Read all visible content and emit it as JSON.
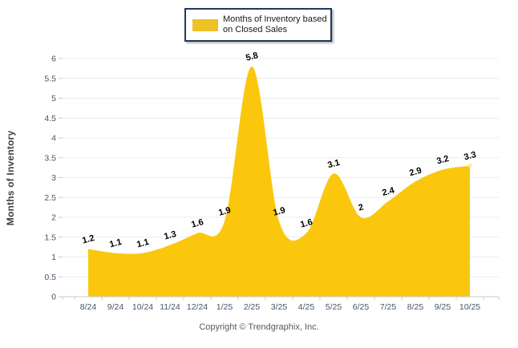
{
  "legend": {
    "lines": [
      "Months of Inventory based",
      "on Closed Sales"
    ],
    "swatch_color": "#EDC227",
    "border_color": "#1E3A5F"
  },
  "footer": {
    "text": "Copyright © Trendgraphix, Inc."
  },
  "chart_data": {
    "type": "area",
    "smooth": true,
    "series_name": "Months of Inventory based on Closed Sales",
    "categories": [
      "8/24",
      "9/24",
      "10/24",
      "11/24",
      "12/24",
      "1/25",
      "2/25",
      "3/25",
      "4/25",
      "5/25",
      "6/25",
      "7/25",
      "8/25",
      "9/25",
      "10/25"
    ],
    "values": [
      1.2,
      1.1,
      1.1,
      1.3,
      1.6,
      1.9,
      5.8,
      1.9,
      1.6,
      3.1,
      2,
      2.4,
      2.9,
      3.2,
      3.3
    ],
    "value_labels": [
      "1.2",
      "1.1",
      "1.1",
      "1.3",
      "1.6",
      "1.9",
      "5.8",
      "1.9",
      "1.6",
      "3.1",
      "2",
      "2.4",
      "2.9",
      "3.2",
      "3.3"
    ],
    "ylabel": "Months of Inventory",
    "xlabel": "",
    "ylim": [
      0,
      6
    ],
    "ytick_step": 0.5,
    "yticks": [
      "0",
      "0.5",
      "1",
      "1.5",
      "2",
      "2.5",
      "3",
      "3.5",
      "4",
      "4.5",
      "5",
      "5.5",
      "6"
    ],
    "grid": true,
    "legend_position": "top",
    "colors": {
      "fill": "#FAC70D",
      "last_point_marker": "#FCE9A4",
      "grid_line": "#ECECEC",
      "axis_line": "#C9C9C9",
      "tick_mark": "#C9C9C9",
      "tick_label": "#44546A",
      "value_label": "#000000"
    }
  }
}
